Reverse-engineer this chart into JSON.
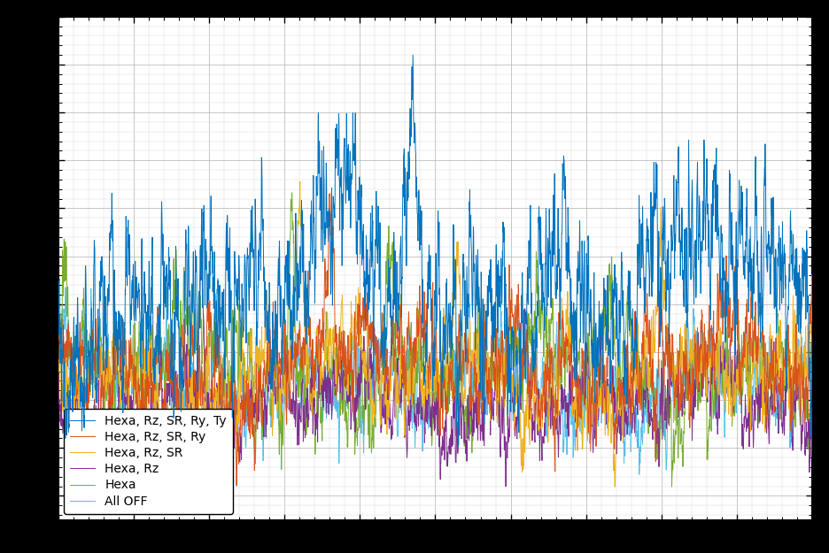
{
  "title": "",
  "xlabel": "",
  "ylabel": "",
  "background_color": "#ffffff",
  "figure_background": "#000000",
  "series": [
    {
      "label": "Hexa, Rz, SR, Ry, Ty",
      "color": "#0072BD",
      "zorder": 6
    },
    {
      "label": "Hexa, Rz, SR, Ry",
      "color": "#D95319",
      "zorder": 5
    },
    {
      "label": "Hexa, Rz, SR",
      "color": "#EDB120",
      "zorder": 4
    },
    {
      "label": "Hexa, Rz",
      "color": "#7E2F8E",
      "zorder": 3
    },
    {
      "label": "Hexa",
      "color": "#77AC30",
      "zorder": 2
    },
    {
      "label": "All OFF",
      "color": "#4DBEEE",
      "zorder": 1
    }
  ],
  "legend_loc": "lower left",
  "legend_fontsize": 10,
  "grid_color": "#b0b0b0",
  "linewidth": 0.7,
  "n_points": 3000,
  "random_seed": 42
}
